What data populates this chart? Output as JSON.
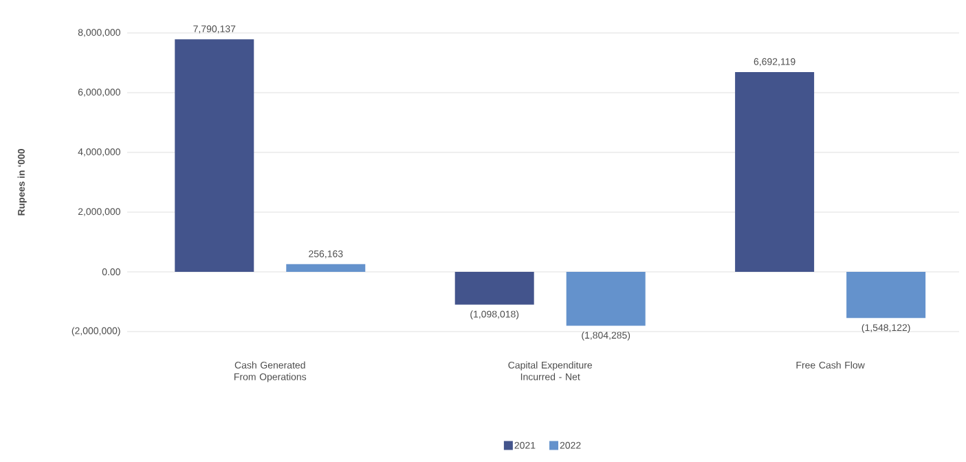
{
  "chart_data": {
    "type": "bar",
    "ylabel": "Rupees in ‘000",
    "categories": [
      "Cash Generated From Operations",
      "Capital Expenditure Incurred - Net",
      "Free Cash Flow"
    ],
    "series": [
      {
        "name": "2021",
        "color": "#43548c",
        "values": [
          7790137,
          -1098018,
          6692119
        ],
        "value_labels": [
          "7,790,137",
          "(1,098,018)",
          "6,692,119"
        ]
      },
      {
        "name": "2022",
        "color": "#6492cc",
        "values": [
          256163,
          -1804285,
          -1548122
        ],
        "value_labels": [
          "256,163",
          "(1,804,285)",
          "(1,548,122)"
        ]
      }
    ],
    "ylim": [
      -2000000,
      8000000
    ],
    "yticks": [
      {
        "value": -2000000,
        "label": "(2,000,000)"
      },
      {
        "value": 0,
        "label": "0.00"
      },
      {
        "value": 2000000,
        "label": "2,000,000"
      },
      {
        "value": 4000000,
        "label": "4,000,000"
      },
      {
        "value": 6000000,
        "label": "6,000,000"
      },
      {
        "value": 8000000,
        "label": "8,000,000"
      }
    ],
    "grid": "y",
    "legend": "bottom"
  }
}
